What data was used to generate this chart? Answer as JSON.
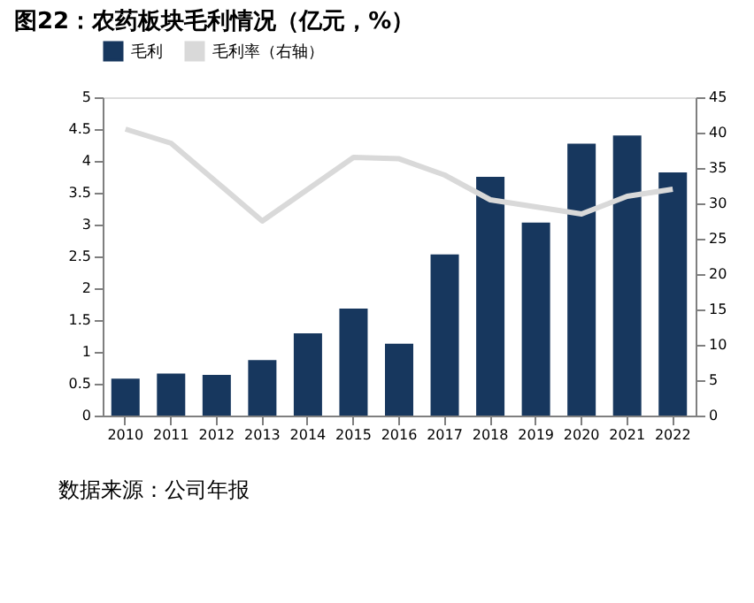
{
  "chart_data": {
    "type": "bar",
    "title": "图22：农药板块毛利情况（亿元，%）",
    "categories": [
      "2010",
      "2011",
      "2012",
      "2013",
      "2014",
      "2015",
      "2016",
      "2017",
      "2018",
      "2019",
      "2020",
      "2021",
      "2022"
    ],
    "series": [
      {
        "name": "毛利",
        "color": "#17375e",
        "values": [
          0.58,
          0.66,
          0.64,
          0.87,
          1.29,
          1.68,
          1.13,
          2.53,
          3.75,
          3.03,
          4.27,
          4.4,
          3.82
        ]
      },
      {
        "name": "毛利率（右轴）",
        "type": "line",
        "axis": "y2",
        "color": "#d9d9d9",
        "values": [
          40.5,
          38.5,
          33,
          27.5,
          32,
          36.5,
          36.3,
          34,
          30.5,
          29.5,
          28.5,
          31,
          32
        ]
      }
    ],
    "ylim": [
      0,
      5
    ],
    "yticks": [
      0,
      0.5,
      1,
      1.5,
      2,
      2.5,
      3,
      3.5,
      4,
      4.5,
      5
    ],
    "y2lim": [
      0,
      45
    ],
    "y2ticks": [
      0,
      5,
      10,
      15,
      20,
      25,
      30,
      35,
      40,
      45
    ],
    "grid": false,
    "legend": "top",
    "marker": "none",
    "line_style": "solid",
    "annotations": [
      "数据来源：公司年报"
    ]
  }
}
